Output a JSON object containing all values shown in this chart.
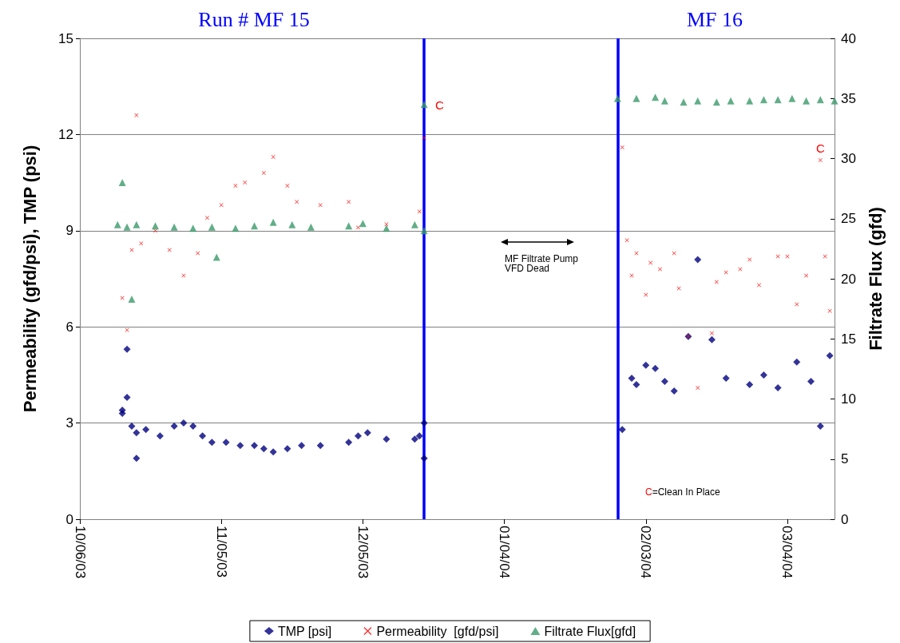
{
  "chart_data": {
    "type": "scatter",
    "ylabel": "Permeability (gfd/psi), TMP (psi)",
    "y2label": "Filtrate Flux (gfd)",
    "xlim": [
      "2003-10-06",
      "2004-03-14"
    ],
    "xticks": [
      {
        "value": "2003-10-06",
        "label": "10/06/03"
      },
      {
        "value": "2003-11-05",
        "label": "11/05/03"
      },
      {
        "value": "2003-12-05",
        "label": "12/05/03"
      },
      {
        "value": "2004-01-04",
        "label": "01/04/04"
      },
      {
        "value": "2004-02-03",
        "label": "02/03/04"
      },
      {
        "value": "2004-03-04",
        "label": "03/04/04"
      }
    ],
    "ylim": [
      0,
      15
    ],
    "yticks": [
      0,
      3,
      6,
      9,
      12,
      15
    ],
    "y2lim": [
      0,
      40
    ],
    "y2ticks": [
      0,
      5,
      10,
      15,
      20,
      25,
      30,
      35,
      40
    ],
    "grid": "y",
    "legend": "bottom",
    "series": [
      {
        "name": "TMP [psi]",
        "color": "#000080",
        "marker": "diamond",
        "x": [
          "2003-10-15",
          "2003-10-15",
          "2003-10-16",
          "2003-10-16",
          "2003-10-17",
          "2003-10-18",
          "2003-10-18",
          "2003-10-20",
          "2003-10-23",
          "2003-10-26",
          "2003-10-28",
          "2003-10-30",
          "2003-11-01",
          "2003-11-03",
          "2003-11-06",
          "2003-11-09",
          "2003-11-12",
          "2003-11-14",
          "2003-11-16",
          "2003-11-19",
          "2003-11-22",
          "2003-11-26",
          "2003-12-02",
          "2003-12-04",
          "2003-12-06",
          "2003-12-10",
          "2003-12-16",
          "2003-12-17",
          "2003-12-18",
          "2003-12-18",
          "2004-01-29",
          "2004-01-31",
          "2004-02-01",
          "2004-02-03",
          "2004-02-05",
          "2004-02-07",
          "2004-02-09",
          "2004-02-12",
          "2004-02-14",
          "2004-02-17",
          "2004-02-20",
          "2004-02-25",
          "2004-02-28",
          "2004-03-02",
          "2004-03-06",
          "2004-03-09",
          "2004-03-11",
          "2004-03-13"
        ],
        "values": [
          3.4,
          3.3,
          5.3,
          3.8,
          2.9,
          1.9,
          2.7,
          2.8,
          2.6,
          2.9,
          3.0,
          2.9,
          2.6,
          2.4,
          2.4,
          2.3,
          2.3,
          2.2,
          2.1,
          2.2,
          2.3,
          2.3,
          2.4,
          2.6,
          2.7,
          2.5,
          2.5,
          2.6,
          3.0,
          1.9,
          2.8,
          4.4,
          4.2,
          4.8,
          4.7,
          4.3,
          4.0,
          5.7,
          8.1,
          5.6,
          4.4,
          4.2,
          4.5,
          4.1,
          4.9,
          4.3,
          2.9,
          5.1
        ]
      },
      {
        "name": "Permeability  [gfd/psi]",
        "color": "#ff0000",
        "marker": "cross",
        "x": [
          "2003-10-15",
          "2003-10-16",
          "2003-10-17",
          "2003-10-18",
          "2003-10-19",
          "2003-10-22",
          "2003-10-25",
          "2003-10-28",
          "2003-10-31",
          "2003-11-02",
          "2003-11-05",
          "2003-11-08",
          "2003-11-10",
          "2003-11-14",
          "2003-11-16",
          "2003-11-19",
          "2003-11-21",
          "2003-11-26",
          "2003-12-02",
          "2003-12-04",
          "2003-12-10",
          "2003-12-17",
          "2003-12-18",
          "2004-01-29",
          "2004-01-30",
          "2004-01-31",
          "2004-02-01",
          "2004-02-03",
          "2004-02-04",
          "2004-02-06",
          "2004-02-09",
          "2004-02-10",
          "2004-02-12",
          "2004-02-14",
          "2004-02-17",
          "2004-02-18",
          "2004-02-20",
          "2004-02-23",
          "2004-02-25",
          "2004-02-27",
          "2004-03-02",
          "2004-03-04",
          "2004-03-06",
          "2004-03-08",
          "2004-03-11",
          "2004-03-12",
          "2004-03-13"
        ],
        "values": [
          6.9,
          5.9,
          8.4,
          12.6,
          8.6,
          9.0,
          8.4,
          7.6,
          8.3,
          9.4,
          9.8,
          10.4,
          10.5,
          10.8,
          11.3,
          10.4,
          9.9,
          9.8,
          9.9,
          9.1,
          9.2,
          9.6,
          11.9,
          11.6,
          8.7,
          7.6,
          8.3,
          7.0,
          8.0,
          7.8,
          8.3,
          7.2,
          5.7,
          4.1,
          5.8,
          7.4,
          7.7,
          7.8,
          8.1,
          7.3,
          8.2,
          8.2,
          6.7,
          7.6,
          11.2,
          8.2,
          6.5
        ]
      },
      {
        "name": "Filtrate Flux[gfd]",
        "color": "#3a9a6a",
        "marker": "triangle",
        "axis": "y2",
        "x": [
          "2003-10-14",
          "2003-10-15",
          "2003-10-16",
          "2003-10-17",
          "2003-10-18",
          "2003-10-22",
          "2003-10-26",
          "2003-10-30",
          "2003-11-03",
          "2003-11-04",
          "2003-11-08",
          "2003-11-12",
          "2003-11-16",
          "2003-11-20",
          "2003-11-24",
          "2003-12-02",
          "2003-12-05",
          "2003-12-10",
          "2003-12-16",
          "2003-12-18",
          "2003-12-18",
          "2004-01-28",
          "2004-02-01",
          "2004-02-05",
          "2004-02-07",
          "2004-02-11",
          "2004-02-14",
          "2004-02-18",
          "2004-02-21",
          "2004-02-25",
          "2004-02-28",
          "2004-03-02",
          "2004-03-05",
          "2004-03-08",
          "2004-03-11",
          "2004-03-14"
        ],
        "values": [
          24.5,
          28.0,
          24.3,
          18.3,
          24.5,
          24.4,
          24.3,
          24.2,
          24.3,
          21.8,
          24.2,
          24.4,
          24.7,
          24.5,
          24.3,
          24.4,
          24.6,
          24.2,
          24.5,
          24.0,
          34.5,
          35.0,
          35.0,
          35.1,
          34.8,
          34.7,
          34.8,
          34.7,
          34.8,
          34.8,
          34.9,
          34.9,
          35.0,
          34.8,
          34.9,
          34.8
        ]
      }
    ],
    "ref_lines": [
      {
        "axis": "x",
        "value": "2003-12-18",
        "color": "#0000ff"
      },
      {
        "axis": "x",
        "value": "2004-01-28",
        "color": "#0000ff"
      }
    ],
    "annotations": [
      "Run # MF 15",
      "MF 16",
      "C",
      "C",
      "MF Filtrate Pump VFD Dead",
      "C=Clean In Place"
    ]
  }
}
